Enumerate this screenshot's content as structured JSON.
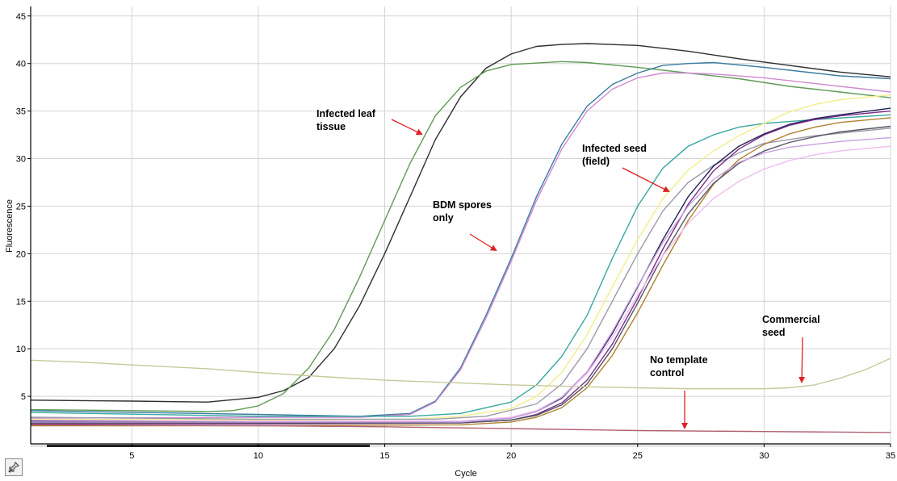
{
  "chart_data": {
    "type": "line",
    "title": "",
    "xlabel": "Cycle",
    "ylabel": "Fluorescence",
    "xlim": [
      1,
      35
    ],
    "ylim": [
      0,
      46
    ],
    "grid": true,
    "legend": "none",
    "x_ticks": [
      "5",
      "10",
      "15",
      "20",
      "25",
      "30",
      "35"
    ],
    "y_ticks": [
      "5",
      "10",
      "15",
      "20",
      "25",
      "30",
      "35",
      "40",
      "45"
    ],
    "series": [
      {
        "color": "#2e2e2e",
        "values": [
          [
            1,
            4.6
          ],
          [
            5,
            4.5
          ],
          [
            8,
            4.4
          ],
          [
            10,
            4.9
          ],
          [
            11,
            5.6
          ],
          [
            12,
            7.0
          ],
          [
            13,
            10.0
          ],
          [
            14,
            14.5
          ],
          [
            15,
            20.0
          ],
          [
            16,
            26.0
          ],
          [
            17,
            32.0
          ],
          [
            18,
            36.5
          ],
          [
            19,
            39.5
          ],
          [
            20,
            41.0
          ],
          [
            21,
            41.8
          ],
          [
            22,
            42.0
          ],
          [
            23,
            42.1
          ],
          [
            25,
            41.9
          ],
          [
            27,
            41.3
          ],
          [
            29,
            40.5
          ],
          [
            31,
            39.8
          ],
          [
            33,
            39.1
          ],
          [
            35,
            38.6
          ]
        ]
      },
      {
        "color": "#5f9b55",
        "values": [
          [
            1,
            3.6
          ],
          [
            5,
            3.5
          ],
          [
            8,
            3.4
          ],
          [
            9,
            3.5
          ],
          [
            10,
            4.0
          ],
          [
            11,
            5.3
          ],
          [
            12,
            8.0
          ],
          [
            13,
            12.0
          ],
          [
            14,
            17.5
          ],
          [
            15,
            23.5
          ],
          [
            16,
            29.5
          ],
          [
            17,
            34.5
          ],
          [
            18,
            37.5
          ],
          [
            19,
            39.2
          ],
          [
            20,
            39.9
          ],
          [
            22,
            40.2
          ],
          [
            23,
            40.1
          ],
          [
            25,
            39.6
          ],
          [
            27,
            39.0
          ],
          [
            29,
            38.4
          ],
          [
            31,
            37.6
          ],
          [
            33,
            37.0
          ],
          [
            35,
            36.4
          ]
        ]
      },
      {
        "color": "#3b7c9f",
        "values": [
          [
            1,
            3.5
          ],
          [
            10,
            3.1
          ],
          [
            14,
            2.9
          ],
          [
            16,
            3.2
          ],
          [
            17,
            4.5
          ],
          [
            18,
            8.0
          ],
          [
            19,
            13.5
          ],
          [
            20,
            19.5
          ],
          [
            21,
            26.0
          ],
          [
            22,
            31.5
          ],
          [
            23,
            35.5
          ],
          [
            24,
            37.8
          ],
          [
            25,
            39.0
          ],
          [
            26,
            39.8
          ],
          [
            27,
            40.0
          ],
          [
            28,
            40.1
          ],
          [
            30,
            39.6
          ],
          [
            32,
            39.0
          ],
          [
            33,
            38.7
          ],
          [
            35,
            38.4
          ]
        ]
      },
      {
        "color": "#d08ad0",
        "values": [
          [
            1,
            2.7
          ],
          [
            10,
            2.8
          ],
          [
            14,
            2.8
          ],
          [
            16,
            3.1
          ],
          [
            17,
            4.4
          ],
          [
            18,
            7.8
          ],
          [
            19,
            13.2
          ],
          [
            20,
            19.2
          ],
          [
            21,
            25.6
          ],
          [
            22,
            31.0
          ],
          [
            23,
            35.0
          ],
          [
            24,
            37.3
          ],
          [
            25,
            38.5
          ],
          [
            26,
            39.0
          ],
          [
            27,
            39.0
          ],
          [
            28,
            38.9
          ],
          [
            30,
            38.5
          ],
          [
            32,
            37.9
          ],
          [
            33,
            37.6
          ],
          [
            35,
            37.0
          ]
        ]
      },
      {
        "color": "#38a8a0",
        "values": [
          [
            1,
            3.3
          ],
          [
            10,
            2.9
          ],
          [
            16,
            2.9
          ],
          [
            18,
            3.2
          ],
          [
            20,
            4.4
          ],
          [
            21,
            6.2
          ],
          [
            22,
            9.2
          ],
          [
            23,
            13.5
          ],
          [
            24,
            19.5
          ],
          [
            25,
            25.0
          ],
          [
            26,
            29.0
          ],
          [
            27,
            31.3
          ],
          [
            28,
            32.5
          ],
          [
            29,
            33.3
          ],
          [
            30,
            33.7
          ],
          [
            32,
            34.1
          ],
          [
            35,
            34.6
          ]
        ]
      },
      {
        "color": "#f2ee8a",
        "values": [
          [
            1,
            2.6
          ],
          [
            10,
            2.5
          ],
          [
            16,
            2.6
          ],
          [
            18,
            2.9
          ],
          [
            20,
            3.7
          ],
          [
            21,
            5.0
          ],
          [
            22,
            7.5
          ],
          [
            23,
            11.5
          ],
          [
            24,
            16.5
          ],
          [
            25,
            21.5
          ],
          [
            26,
            25.8
          ],
          [
            27,
            28.8
          ],
          [
            28,
            30.8
          ],
          [
            29,
            32.4
          ],
          [
            30,
            33.7
          ],
          [
            31,
            34.9
          ],
          [
            32,
            35.7
          ],
          [
            33,
            36.2
          ],
          [
            35,
            36.7
          ]
        ]
      },
      {
        "color": "#9a9aaa",
        "values": [
          [
            1,
            2.8
          ],
          [
            10,
            2.6
          ],
          [
            17,
            2.6
          ],
          [
            19,
            2.9
          ],
          [
            21,
            4.2
          ],
          [
            22,
            6.3
          ],
          [
            23,
            10.0
          ],
          [
            24,
            15.0
          ],
          [
            25,
            20.0
          ],
          [
            26,
            24.5
          ],
          [
            27,
            27.5
          ],
          [
            28,
            29.3
          ],
          [
            29,
            30.6
          ],
          [
            30,
            31.6
          ],
          [
            32,
            32.4
          ],
          [
            35,
            33.2
          ]
        ]
      },
      {
        "color": "#1f1f55",
        "values": [
          [
            1,
            2.4
          ],
          [
            10,
            2.3
          ],
          [
            18,
            2.3
          ],
          [
            20,
            2.7
          ],
          [
            21,
            3.4
          ],
          [
            22,
            4.8
          ],
          [
            23,
            7.5
          ],
          [
            24,
            11.6
          ],
          [
            25,
            16.5
          ],
          [
            26,
            21.5
          ],
          [
            27,
            26.0
          ],
          [
            28,
            29.2
          ],
          [
            29,
            31.3
          ],
          [
            30,
            32.6
          ],
          [
            31,
            33.6
          ],
          [
            32,
            34.2
          ],
          [
            33,
            34.6
          ],
          [
            35,
            35.3
          ]
        ]
      },
      {
        "color": "#7a2f8a",
        "values": [
          [
            1,
            2.1
          ],
          [
            10,
            2.1
          ],
          [
            18,
            2.2
          ],
          [
            20,
            2.5
          ],
          [
            21,
            3.1
          ],
          [
            22,
            4.3
          ],
          [
            23,
            6.7
          ],
          [
            24,
            10.5
          ],
          [
            25,
            15.3
          ],
          [
            26,
            20.5
          ],
          [
            27,
            25.2
          ],
          [
            28,
            28.7
          ],
          [
            29,
            31.0
          ],
          [
            30,
            32.5
          ],
          [
            31,
            33.5
          ],
          [
            32,
            34.1
          ],
          [
            33,
            34.5
          ],
          [
            35,
            35.0
          ]
        ]
      },
      {
        "color": "#b08030",
        "values": [
          [
            1,
            1.9
          ],
          [
            10,
            1.9
          ],
          [
            18,
            2.0
          ],
          [
            20,
            2.3
          ],
          [
            21,
            2.8
          ],
          [
            22,
            3.8
          ],
          [
            23,
            5.9
          ],
          [
            24,
            9.3
          ],
          [
            25,
            13.8
          ],
          [
            26,
            18.8
          ],
          [
            27,
            23.5
          ],
          [
            28,
            27.3
          ],
          [
            29,
            29.9
          ],
          [
            30,
            31.5
          ],
          [
            31,
            32.6
          ],
          [
            32,
            33.3
          ],
          [
            33,
            33.8
          ],
          [
            35,
            34.3
          ]
        ]
      },
      {
        "color": "#555566",
        "values": [
          [
            1,
            2.2
          ],
          [
            10,
            2.2
          ],
          [
            18,
            2.2
          ],
          [
            20,
            2.5
          ],
          [
            21,
            3.0
          ],
          [
            22,
            4.1
          ],
          [
            23,
            6.3
          ],
          [
            24,
            10.0
          ],
          [
            25,
            14.8
          ],
          [
            26,
            19.8
          ],
          [
            27,
            24.2
          ],
          [
            28,
            27.4
          ],
          [
            29,
            29.5
          ],
          [
            30,
            30.8
          ],
          [
            31,
            31.7
          ],
          [
            32,
            32.3
          ],
          [
            33,
            32.8
          ],
          [
            35,
            33.4
          ]
        ]
      },
      {
        "color": "#f0bcf0",
        "values": [
          [
            1,
            2.5
          ],
          [
            10,
            2.4
          ],
          [
            18,
            2.4
          ],
          [
            20,
            2.8
          ],
          [
            21,
            3.5
          ],
          [
            22,
            4.9
          ],
          [
            23,
            7.4
          ],
          [
            24,
            11.2
          ],
          [
            25,
            15.6
          ],
          [
            26,
            19.8
          ],
          [
            27,
            23.2
          ],
          [
            28,
            25.8
          ],
          [
            29,
            27.6
          ],
          [
            30,
            28.9
          ],
          [
            31,
            29.8
          ],
          [
            32,
            30.4
          ],
          [
            33,
            30.8
          ],
          [
            35,
            31.3
          ]
        ]
      },
      {
        "color": "#c8a0e0",
        "values": [
          [
            1,
            2.3
          ],
          [
            10,
            2.3
          ],
          [
            18,
            2.3
          ],
          [
            20,
            2.7
          ],
          [
            21,
            3.4
          ],
          [
            22,
            4.9
          ],
          [
            23,
            7.6
          ],
          [
            24,
            11.8
          ],
          [
            25,
            16.6
          ],
          [
            26,
            21.2
          ],
          [
            27,
            25.0
          ],
          [
            28,
            27.8
          ],
          [
            29,
            29.6
          ],
          [
            30,
            30.6
          ],
          [
            31,
            31.2
          ],
          [
            33,
            31.8
          ],
          [
            35,
            32.2
          ]
        ]
      },
      {
        "color": "#c8c89a",
        "values": [
          [
            1,
            8.8
          ],
          [
            3,
            8.6
          ],
          [
            5,
            8.3
          ],
          [
            8,
            7.9
          ],
          [
            10,
            7.5
          ],
          [
            13,
            7.0
          ],
          [
            15,
            6.7
          ],
          [
            18,
            6.4
          ],
          [
            20,
            6.2
          ],
          [
            23,
            6.0
          ],
          [
            25,
            5.9
          ],
          [
            27,
            5.8
          ],
          [
            29,
            5.8
          ],
          [
            30,
            5.8
          ],
          [
            31,
            5.9
          ],
          [
            32,
            6.2
          ],
          [
            33,
            6.9
          ],
          [
            34,
            7.8
          ],
          [
            35,
            9.0
          ]
        ]
      },
      {
        "color": "#b06070",
        "values": [
          [
            1,
            2.0
          ],
          [
            10,
            1.9
          ],
          [
            15,
            1.8
          ],
          [
            20,
            1.6
          ],
          [
            25,
            1.4
          ],
          [
            30,
            1.3
          ],
          [
            35,
            1.2
          ]
        ]
      }
    ],
    "annotations": [
      {
        "lines": [
          "Infected leaf",
          "tissue"
        ]
      },
      {
        "lines": [
          "BDM spores",
          "only"
        ]
      },
      {
        "lines": [
          "Infected seed",
          "(field)"
        ]
      },
      {
        "lines": [
          "Commercial",
          "seed"
        ]
      },
      {
        "lines": [
          "No template",
          "control"
        ]
      }
    ]
  },
  "toolbar": {
    "tool_icon": "pin-tool-icon"
  }
}
